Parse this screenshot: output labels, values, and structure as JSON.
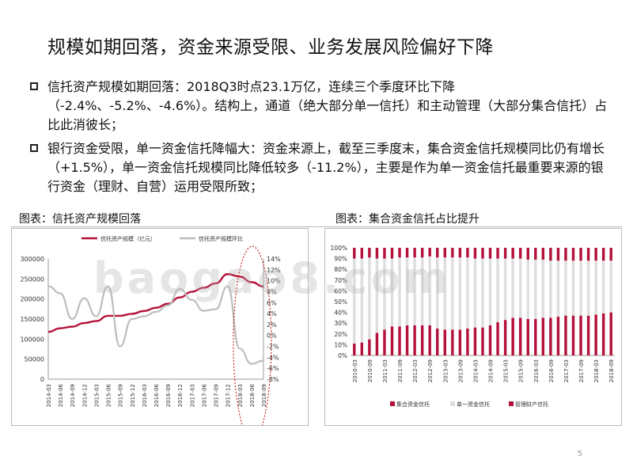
{
  "slide": {
    "title": "规模如期回落，资金来源受限、业务发展风险偏好下降",
    "bullets": [
      "信托资产规模如期回落：2018Q3时点23.1万亿，连续三个季度环比下降（-2.4%、-5.2%、-4.6%）。结构上，通道（绝大部分单一信托）和主动管理（大部分集合信托）占比此消彼长；",
      "银行资金受限，单一资金信托降幅大：资金来源上，截至三季度末，集合资金信托规模同比仍有增长（+1.5%），单一资金信托规模同比降低较多（-11.2%），主要是作为单一资金信托最重要来源的银行资金（理财、自营）运用受限所致；"
    ],
    "left_chart_title": "图表：信托资产规模回落",
    "right_chart_title": "图表：集合资金信托占比提升",
    "page_number": "5",
    "watermark": "baogao8.com"
  },
  "chart_data": [
    {
      "type": "line",
      "legend_position": "top",
      "x": [
        "2014-03",
        "2014-06",
        "2014-09",
        "2014-12",
        "2015-03",
        "2015-06",
        "2015-09",
        "2015-12",
        "2016-03",
        "2016-06",
        "2016-09",
        "2016-12",
        "2017-03",
        "2017-06",
        "2017-09",
        "2017-12",
        "2018-03",
        "2018-06",
        "2018-09"
      ],
      "y_left_ticks": [
        "300000",
        "250000",
        "200000",
        "150000",
        "100000",
        "50000",
        "0"
      ],
      "y_right_ticks": [
        "14%",
        "12%",
        "10%",
        "8%",
        "6%",
        "4%",
        "2%",
        "0%",
        "-2%",
        "-4%",
        "-6%",
        "-8%"
      ],
      "ylim_left": [
        0,
        300000
      ],
      "ylim_right": [
        -0.08,
        0.14
      ],
      "series": [
        {
          "name": "信托资产规模（亿元）",
          "axis": "left",
          "color": "#b5123b",
          "values": [
            118000,
            127000,
            131000,
            140000,
            145000,
            158000,
            158000,
            163000,
            170000,
            178000,
            188000,
            204000,
            218000,
            228000,
            239000,
            262000,
            256000,
            242000,
            231000
          ]
        },
        {
          "name": "信托资产规模环比",
          "axis": "right",
          "color": "#bdbdbd",
          "values": [
            0.09,
            0.077,
            0.03,
            0.068,
            0.035,
            0.09,
            -0.02,
            0.03,
            0.035,
            0.043,
            0.055,
            0.085,
            0.065,
            0.045,
            0.048,
            0.09,
            -0.024,
            -0.052,
            -0.046
          ]
        }
      ]
    },
    {
      "type": "bar",
      "stacked": true,
      "legend_position": "bottom",
      "categories": [
        "2010-03",
        "2010-06",
        "2010-09",
        "2010-12",
        "2011-03",
        "2011-06",
        "2011-09",
        "2011-12",
        "2012-03",
        "2012-06",
        "2012-09",
        "2012-12",
        "2013-03",
        "2013-06",
        "2013-09",
        "2013-12",
        "2014-03",
        "2014-06",
        "2014-09",
        "2014-12",
        "2015-03",
        "2015-06",
        "2015-09",
        "2015-12",
        "2016-03",
        "2016-06",
        "2016-09",
        "2016-12",
        "2017-03",
        "2017-06",
        "2017-09",
        "2017-12",
        "2018-03",
        "2018-06",
        "2018-09"
      ],
      "x_tick_labels": [
        "2010-03",
        "2010-09",
        "2011-03",
        "2011-09",
        "2012-03",
        "2012-09",
        "2013-03",
        "2013-09",
        "2014-03",
        "2014-09",
        "2015-03",
        "2015-09",
        "2016-03",
        "2016-09",
        "2017-03",
        "2017-09",
        "2018-03",
        "2018-09"
      ],
      "y_ticks": [
        "100%",
        "90%",
        "80%",
        "70%",
        "60%",
        "50%",
        "40%",
        "30%",
        "20%",
        "10%",
        "0%"
      ],
      "ylim": [
        0,
        1
      ],
      "series": [
        {
          "name": "集合资金信托",
          "color": "#b5123b",
          "values": [
            0.11,
            0.12,
            0.15,
            0.21,
            0.24,
            0.27,
            0.27,
            0.28,
            0.28,
            0.28,
            0.28,
            0.25,
            0.24,
            0.24,
            0.24,
            0.25,
            0.26,
            0.26,
            0.28,
            0.31,
            0.33,
            0.35,
            0.35,
            0.34,
            0.34,
            0.35,
            0.35,
            0.36,
            0.37,
            0.37,
            0.37,
            0.37,
            0.38,
            0.39,
            0.4
          ]
        },
        {
          "name": "单一资金信托",
          "color": "#dedede",
          "values": [
            0.79,
            0.78,
            0.76,
            0.69,
            0.66,
            0.63,
            0.64,
            0.63,
            0.63,
            0.63,
            0.64,
            0.66,
            0.67,
            0.67,
            0.67,
            0.66,
            0.64,
            0.64,
            0.62,
            0.59,
            0.57,
            0.55,
            0.55,
            0.55,
            0.55,
            0.54,
            0.53,
            0.52,
            0.51,
            0.51,
            0.51,
            0.51,
            0.5,
            0.49,
            0.48
          ]
        },
        {
          "name": "管理财产信托",
          "color": "#b5123b",
          "values": [
            0.1,
            0.1,
            0.09,
            0.1,
            0.1,
            0.1,
            0.09,
            0.09,
            0.09,
            0.09,
            0.08,
            0.09,
            0.09,
            0.09,
            0.09,
            0.09,
            0.1,
            0.1,
            0.1,
            0.1,
            0.1,
            0.1,
            0.1,
            0.11,
            0.11,
            0.11,
            0.12,
            0.12,
            0.12,
            0.12,
            0.12,
            0.12,
            0.12,
            0.12,
            0.12
          ]
        }
      ]
    }
  ]
}
